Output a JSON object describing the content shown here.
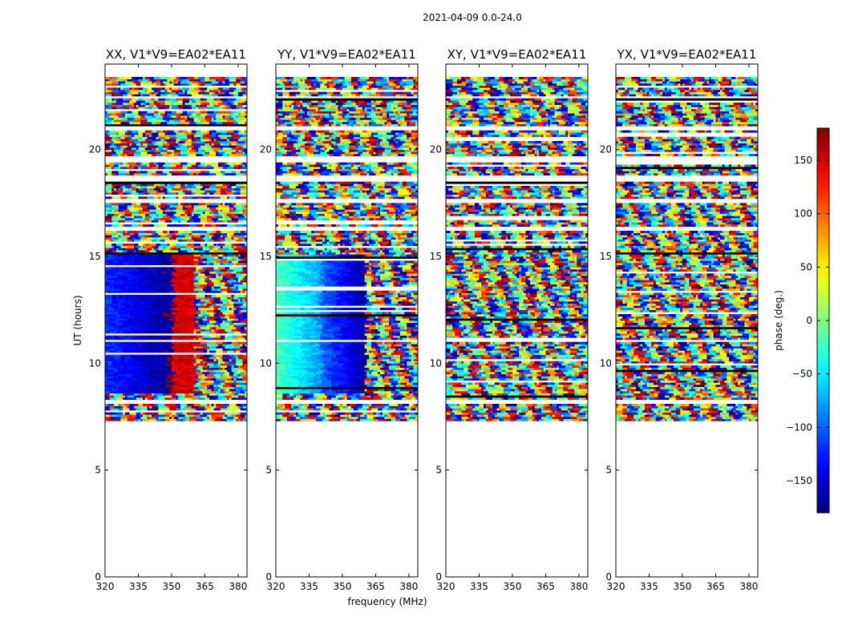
{
  "chart_data": {
    "type": "heatmap",
    "suptitle": "2021-04-09 0.0-24.0",
    "xlabel": "frequency (MHz)",
    "ylabel": "UT (hours)",
    "xlim": [
      320,
      384
    ],
    "ylim": [
      0,
      24
    ],
    "xticks": [
      320,
      335,
      350,
      365,
      380
    ],
    "xtick_labels": [
      "320",
      "335",
      "350",
      "365",
      "380"
    ],
    "yticks": [
      0,
      5,
      10,
      15,
      20
    ],
    "ytick_labels": [
      "0",
      "5",
      "10",
      "15",
      "20"
    ],
    "colorbar": {
      "label": "phase (deg.)",
      "range": [
        -180,
        180
      ],
      "ticks": [
        150,
        100,
        50,
        0,
        -50,
        -100,
        -150
      ],
      "tick_labels": [
        "150",
        "100",
        "50",
        "0",
        "−50",
        "−100",
        "−150"
      ],
      "colormap": "jet"
    },
    "data_coverage_hours": [
      7.3,
      23.4
    ],
    "time_gaps_hours": [
      [
        8.0,
        8.2
      ],
      [
        10.95,
        11.05
      ],
      [
        16.1,
        16.3
      ],
      [
        17.4,
        17.6
      ],
      [
        18.5,
        18.8
      ],
      [
        19.4,
        19.7
      ],
      [
        20.9,
        21.05
      ],
      [
        22.4,
        22.5
      ]
    ],
    "panels": [
      {
        "title": "XX, V1*V9=EA02*EA11",
        "description": "coherent phase ~ -150 deg (320-350 MHz), ~ +150 deg (355-360 MHz) during 8.5-15 h; noisy phase otherwise",
        "coherent_band": {
          "t_range": [
            8.5,
            15.0
          ],
          "segments": [
            {
              "f_range": [
                320,
                350
              ],
              "phase": -150
            },
            {
              "f_range": [
                350,
                360
              ],
              "phase": 150
            }
          ]
        }
      },
      {
        "title": "YY, V1*V9=EA02*EA11",
        "description": "coherent phase ~ -20 deg at 320 MHz falling to ~ -160 deg at 360 MHz during 8.5-15 h; noisy phase otherwise",
        "coherent_band": {
          "t_range": [
            8.5,
            15.0
          ],
          "segments": [
            {
              "f_range": [
                320,
                340
              ],
              "phase": -20
            },
            {
              "f_range": [
                340,
                360
              ],
              "phase": -140
            }
          ]
        }
      },
      {
        "title": "XY, V1*V9=EA02*EA11",
        "description": "noisy phase throughout the observed interval"
      },
      {
        "title": "YX, V1*V9=EA02*EA11",
        "description": "noisy phase throughout the observed interval"
      }
    ]
  }
}
